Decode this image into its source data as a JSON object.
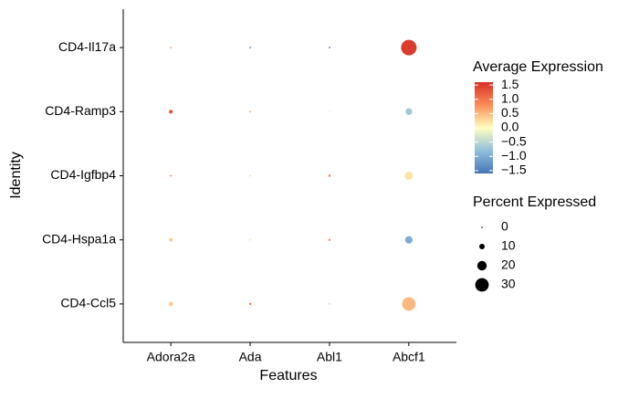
{
  "chart_data": {
    "type": "dot",
    "x_label": "Features",
    "y_label": "Identity",
    "categories": [
      "Adora2a",
      "Ada",
      "Abl1",
      "Abcf1"
    ],
    "identities": [
      "CD4-Ccl5",
      "CD4-Hspa1a",
      "CD4-Igfbp4",
      "CD4-Ramp3",
      "CD4-Il17a"
    ],
    "avg_expression": [
      [
        0.4,
        1.0,
        0.3,
        0.5
      ],
      [
        0.4,
        0.2,
        0.9,
        -1.0
      ],
      [
        0.8,
        0.3,
        1.0,
        0.2
      ],
      [
        1.3,
        0.5,
        0.1,
        -0.7
      ],
      [
        0.5,
        -1.2,
        -1.3,
        1.5
      ]
    ],
    "pct_expressed": [
      [
        7,
        2,
        1,
        30
      ],
      [
        5,
        0.5,
        1.5,
        15
      ],
      [
        1,
        0.5,
        2,
        17
      ],
      [
        6,
        1,
        0.5,
        13
      ],
      [
        1,
        1,
        1,
        35
      ]
    ],
    "color_legend_title": "Average Expression",
    "clim": [
      -1.6,
      1.6
    ],
    "colors": [
      "#4575b4",
      "#91bfdb",
      "#ffffbf",
      "#fc8d59",
      "#d73027"
    ],
    "cticks": [
      1.5,
      {
        "value": 1.0,
        "label": "1.0"
      },
      0.5,
      {
        "value": 0.0,
        "label": "0.0"
      },
      {
        "value": -0.5,
        "label": "−0.5"
      },
      {
        "value": -1.0,
        "label": "−1.0"
      },
      {
        "value": -1.5,
        "label": "−1.5"
      }
    ],
    "size_legend_title": "Percent Expressed",
    "size_ticks": [
      0,
      10,
      20,
      30
    ]
  }
}
